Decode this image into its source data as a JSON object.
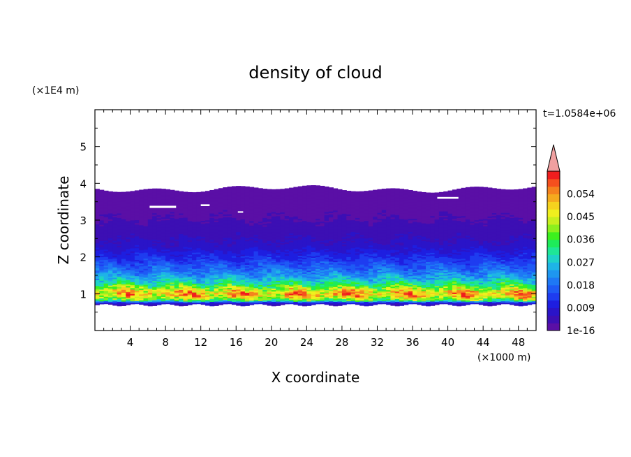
{
  "chart_data": {
    "type": "heatmap",
    "title": "density of cloud",
    "xlabel": "X coordinate",
    "ylabel": "Z coordinate",
    "x_unit": "(×1000 m)",
    "y_unit": "(×1E4 m)",
    "time_label": "t=1.0584e+06",
    "xlim": [
      0,
      50
    ],
    "ylim": [
      0,
      6
    ],
    "x_ticks": [
      4,
      8,
      12,
      16,
      20,
      24,
      28,
      32,
      36,
      40,
      44,
      48
    ],
    "y_ticks": [
      1,
      2,
      3,
      4,
      5
    ],
    "colorbar": {
      "labels": [
        "1e-16",
        "0.009",
        "0.018",
        "0.027",
        "0.036",
        "0.045",
        "0.054"
      ],
      "levels": [
        0,
        0.003,
        0.006,
        0.009,
        0.012,
        0.015,
        0.018,
        0.021,
        0.024,
        0.027,
        0.03,
        0.033,
        0.036,
        0.039,
        0.042,
        0.045,
        0.048,
        0.051,
        0.054,
        0.057,
        0.06
      ],
      "colors": [
        "#5a0fa6",
        "#3c0fb4",
        "#2a14c8",
        "#1e1ee0",
        "#1e3cf0",
        "#1e5af5",
        "#1e78f5",
        "#1e96f0",
        "#1eb4e6",
        "#1ed2c8",
        "#1ee696",
        "#1eeb5a",
        "#3cf01e",
        "#8cf01e",
        "#c8f01e",
        "#f0f01e",
        "#f5d21e",
        "#f5aa1e",
        "#f5821e",
        "#f5501e",
        "#f01e1e"
      ],
      "extend_color": "#f0a0a0"
    },
    "profile": {
      "z": [
        0.7,
        0.75,
        0.8,
        0.9,
        1.0,
        1.1,
        1.2,
        1.3,
        1.4,
        1.5,
        1.7,
        1.9,
        2.1,
        2.3,
        2.6,
        3.0,
        3.4,
        3.8
      ],
      "density": [
        0.006,
        0.012,
        0.035,
        0.048,
        0.052,
        0.044,
        0.036,
        0.03,
        0.026,
        0.022,
        0.017,
        0.013,
        0.01,
        0.007,
        0.005,
        0.003,
        0.002,
        0.001
      ]
    },
    "cloud_top_z": 3.85,
    "cloud_base_z": 0.7
  }
}
